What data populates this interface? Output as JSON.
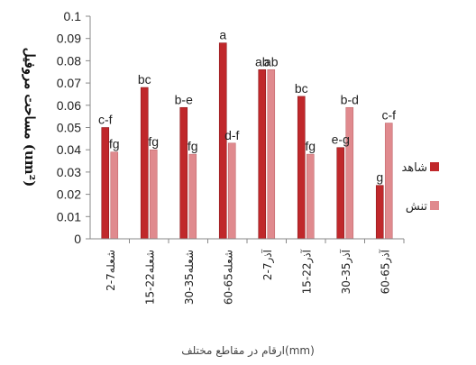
{
  "chart_data": {
    "type": "bar",
    "xlabel": "ارقام در مقاطع مختلف(mm)",
    "ylabel": "مساحت مروفیل (um²)",
    "ylim": [
      0,
      0.1
    ],
    "yticks": [
      "0",
      "0.01",
      "0.02",
      "0.03",
      "0.04",
      "0.05",
      "0.06",
      "0.07",
      "0.08",
      "0.09",
      "0.1"
    ],
    "grid": false,
    "legend_position": "right",
    "categories": [
      "2-7شعله",
      "15-22شعله",
      "30-35شعله",
      "60-65شعله",
      "2-7آذر",
      "15-22آذر",
      "30-35آذر",
      "60-65آذر"
    ],
    "series": [
      {
        "name": "شاهد",
        "color": "#c0282b",
        "values": [
          0.05,
          0.068,
          0.059,
          0.088,
          0.076,
          0.064,
          0.041,
          0.024
        ],
        "labels": [
          "c-f",
          "bc",
          "b-e",
          "a",
          "ab",
          "bc",
          "e-g",
          "g"
        ]
      },
      {
        "name": "تنش",
        "color": "#e08a8e",
        "values": [
          0.039,
          0.04,
          0.038,
          0.043,
          0.076,
          0.038,
          0.059,
          0.052
        ],
        "labels": [
          "fg",
          "fg",
          "fg",
          "d-f",
          "ab",
          "fg",
          "b-d",
          "c-f"
        ]
      }
    ]
  }
}
